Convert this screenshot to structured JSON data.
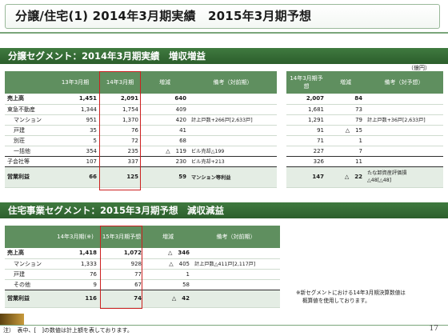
{
  "title": "分譲/住宅(1) 2014年3月期実績　2015年3月期予想",
  "section1": {
    "header": "分譲セグメント：2014年3月期実績　増収増益",
    "unit": "（億円）",
    "table1": {
      "headers": [
        "",
        "13年3月期",
        "14年3月期",
        "増減",
        "備考（対前期）"
      ],
      "rows": [
        {
          "label": "売上高",
          "v13": "1,451",
          "v14": "2,091",
          "diff": "640",
          "note": ""
        },
        {
          "label": "東急不動産",
          "v13": "1,344",
          "v14": "1,754",
          "diff": "409",
          "note": ""
        },
        {
          "label": "マンション",
          "v13": "951",
          "v14": "1,370",
          "diff": "420",
          "note": "計上戸数+266戸[2,633戸]"
        },
        {
          "label": "戸建",
          "v13": "35",
          "v14": "76",
          "diff": "41",
          "note": ""
        },
        {
          "label": "別荘",
          "v13": "5",
          "v14": "72",
          "diff": "68",
          "note": ""
        },
        {
          "label": "一括他",
          "v13": "354",
          "v14": "235",
          "diff": "△　119",
          "note": "ビル売却△199"
        },
        {
          "label": "子会社等",
          "v13": "107",
          "v14": "337",
          "diff": "230",
          "note": "ビル売却+213"
        },
        {
          "label": "営業利益",
          "v13": "66",
          "v14": "125",
          "diff": "59",
          "note": "マンション等利益"
        }
      ]
    },
    "table2": {
      "headers": [
        "14年3月期予想",
        "増減",
        "備考（対予想）"
      ],
      "rows": [
        {
          "forecast": "2,007",
          "diff": "84",
          "note": ""
        },
        {
          "forecast": "1,681",
          "diff": "73",
          "note": ""
        },
        {
          "forecast": "1,291",
          "diff": "79",
          "note": "計上戸数+36戸[2,633戸]"
        },
        {
          "forecast": "91",
          "diff": "△　15",
          "note": ""
        },
        {
          "forecast": "71",
          "diff": "1",
          "note": ""
        },
        {
          "forecast": "227",
          "diff": "7",
          "note": ""
        },
        {
          "forecast": "326",
          "diff": "11",
          "note": ""
        },
        {
          "forecast": "147",
          "diff": "△　22",
          "note": "たな卸資産評価損",
          "note2": "△48[△48]"
        }
      ]
    }
  },
  "section2": {
    "header": "住宅事業セグメント：2015年3月期予想　減収減益",
    "table": {
      "headers": [
        "",
        "14年3月期(※)",
        "15年3月期予想",
        "増減",
        "備考（対前期）"
      ],
      "rows": [
        {
          "label": "売上高",
          "v14": "1,418",
          "v15": "1,072",
          "diff": "△　346",
          "note": ""
        },
        {
          "label": "マンション",
          "v14": "1,333",
          "v15": "928",
          "diff": "△　405",
          "note": "計上戸数△411戸[2,117戸]"
        },
        {
          "label": "戸建",
          "v14": "76",
          "v15": "77",
          "diff": "1",
          "note": ""
        },
        {
          "label": "その他",
          "v14": "9",
          "v15": "67",
          "diff": "58",
          "note": ""
        },
        {
          "label": "営業利益",
          "v14": "116",
          "v15": "74",
          "diff": "△　42",
          "note": ""
        }
      ]
    },
    "side_note_line1": "※新セグメントにおける14年3月期決算数値は",
    "side_note_line2": "概算値を使用しております。"
  },
  "footnote": "注）　表中、[　]の数値は計上額を表しております。",
  "page_number": "17",
  "colors": {
    "accent_green": "#2c5e2c",
    "header_green": "#5f8f5f",
    "highlight_red": "#cc2020"
  }
}
